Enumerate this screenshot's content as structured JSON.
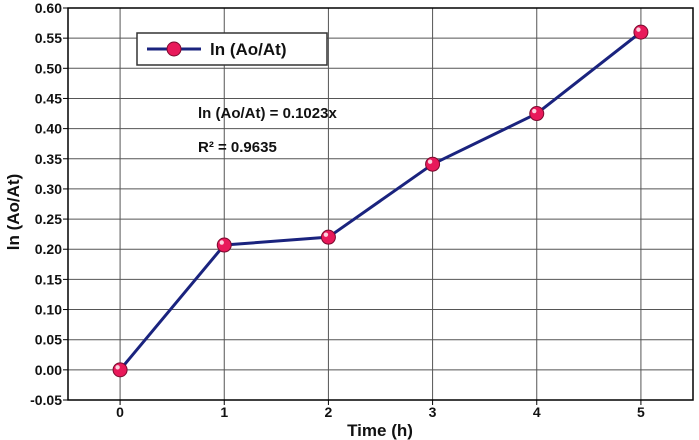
{
  "chart_data": {
    "type": "line",
    "x": [
      0,
      1,
      2,
      3,
      4,
      5
    ],
    "series": [
      {
        "name": "ln (Ao/At)",
        "values": [
          0.0,
          0.207,
          0.22,
          0.341,
          0.425,
          0.56
        ],
        "line_color": "#1a237e",
        "marker_color": "#e8195a"
      }
    ],
    "xlabel": "Time (h)",
    "ylabel": "ln (Ao/At)",
    "xlim": [
      -0.5,
      5.5
    ],
    "ylim": [
      -0.05,
      0.6
    ],
    "x_ticks": [
      "0",
      "1",
      "2",
      "3",
      "4",
      "5"
    ],
    "y_ticks": [
      "-0.05",
      "0.00",
      "0.05",
      "0.10",
      "0.15",
      "0.20",
      "0.25",
      "0.30",
      "0.35",
      "0.40",
      "0.45",
      "0.50",
      "0.55",
      "0.60"
    ],
    "grid": true,
    "legend_position": "top-left",
    "annotations": [
      "ln (Ao/At) = 0.1023x",
      "R² = 0.9635"
    ]
  }
}
